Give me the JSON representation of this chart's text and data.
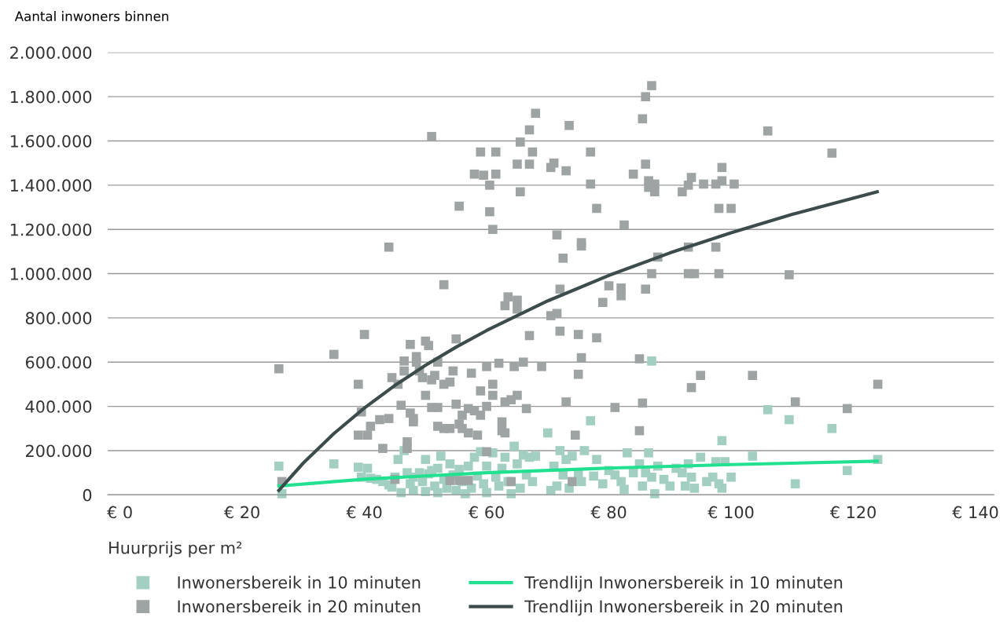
{
  "chart_data": {
    "type": "scatter",
    "ylabel": "Aantal inwoners binnen",
    "xlabel": "Huurprijs per m²",
    "xlim": [
      -2,
      143
    ],
    "xticks": [
      {
        "value": 0,
        "label": "€ 0"
      },
      {
        "value": 20,
        "label": "€ 20"
      },
      {
        "value": 40,
        "label": "€ 40"
      },
      {
        "value": 60,
        "label": "€ 60"
      },
      {
        "value": 80,
        "label": "€ 80"
      },
      {
        "value": 100,
        "label": "€ 100"
      },
      {
        "value": 120,
        "label": "€ 120"
      },
      {
        "value": 140,
        "label": "€ 140"
      }
    ],
    "ylim": [
      0,
      2000000
    ],
    "yticks": [
      0,
      {
        "value": 200000,
        "label": "200.000"
      },
      {
        "value": 400000,
        "label": "400.000"
      },
      {
        "value": 600000,
        "label": "600.000"
      },
      {
        "value": 800000,
        "label": "800.000"
      },
      {
        "value": 1000000,
        "label": "1.000.000"
      },
      {
        "value": 1200000,
        "label": "1.200.000"
      },
      {
        "value": 1400000,
        "label": "1.400.000"
      },
      {
        "value": 1600000,
        "label": "1.600.000"
      },
      {
        "value": 1800000,
        "label": "1.800.000"
      },
      {
        "value": 2000000,
        "label": "2.000.000"
      }
    ],
    "grid": "y",
    "legend": "bottom",
    "marker": "square",
    "series": [
      {
        "name": "Inwonersbereik in 10 minuten",
        "color": "#a3cfc3",
        "x": [
          26,
          26.5,
          35,
          39,
          39.5,
          40.5,
          41,
          42,
          43,
          44,
          44.5,
          45,
          45.5,
          46,
          46.5,
          47,
          47.5,
          48,
          48,
          49,
          49.5,
          50,
          50,
          50.5,
          51,
          51.5,
          52,
          52,
          52.5,
          53,
          53.5,
          54,
          54.5,
          55,
          55.5,
          56,
          56.5,
          57,
          57.5,
          58,
          58.5,
          59,
          59.5,
          60,
          60,
          61,
          61.5,
          62,
          62.5,
          63,
          63.5,
          64,
          64.5,
          65,
          65.5,
          66,
          66.5,
          67,
          67.5,
          68,
          70,
          70.5,
          71,
          71.5,
          72,
          72.5,
          73,
          73.5,
          74,
          75,
          75.5,
          76,
          77,
          77.5,
          78,
          79,
          80,
          81,
          82,
          82.5,
          83,
          84,
          85,
          85.5,
          86,
          86.5,
          87,
          87,
          87.5,
          88,
          89,
          90,
          91,
          92,
          92.5,
          93,
          93.5,
          94,
          95,
          96,
          97,
          97.5,
          98,
          98.5,
          98.5,
          99,
          100,
          103.5,
          106,
          109.5,
          110.5,
          116.5,
          119,
          124
        ],
        "values": [
          130000,
          5000,
          140000,
          125000,
          80000,
          120000,
          75000,
          70000,
          60000,
          45000,
          35000,
          80000,
          160000,
          10000,
          200000,
          100000,
          50000,
          80000,
          20000,
          100000,
          60000,
          160000,
          15000,
          95000,
          110000,
          40000,
          120000,
          10000,
          175000,
          70000,
          30000,
          140000,
          90000,
          20000,
          115000,
          60000,
          5000,
          130000,
          30000,
          170000,
          85000,
          195000,
          50000,
          10000,
          130000,
          190000,
          80000,
          40000,
          120000,
          170000,
          60000,
          5000,
          220000,
          140000,
          30000,
          180000,
          90000,
          170000,
          60000,
          175000,
          280000,
          20000,
          130000,
          40000,
          200000,
          90000,
          160000,
          30000,
          175000,
          100000,
          60000,
          200000,
          335000,
          85000,
          160000,
          50000,
          110000,
          90000,
          60000,
          25000,
          190000,
          100000,
          140000,
          40000,
          100000,
          190000,
          605000,
          80000,
          5000,
          130000,
          70000,
          40000,
          120000,
          100000,
          40000,
          140000,
          80000,
          30000,
          170000,
          60000,
          80000,
          150000,
          50000,
          245000,
          30000,
          150000,
          80000,
          175000,
          385000,
          340000,
          50000,
          300000,
          110000,
          160000
        ]
      },
      {
        "name": "Inwonersbereik in 20 minuten",
        "color": "#9ea3a4",
        "x": [
          26,
          26.5,
          35,
          39,
          40,
          39.5,
          39,
          40.5,
          41,
          44,
          42.5,
          43,
          44,
          44.5,
          45.5,
          46,
          46.5,
          46.5,
          47,
          47,
          47.5,
          47.5,
          48,
          48,
          48.5,
          48.5,
          49,
          49.5,
          50,
          50,
          50.5,
          51,
          51,
          51,
          51.5,
          52,
          52,
          52,
          53,
          53,
          53,
          54,
          54,
          54.5,
          55,
          55,
          55.5,
          55.5,
          56,
          56,
          57,
          57,
          57.5,
          58,
          58,
          58.5,
          59,
          59,
          59,
          59.5,
          60,
          60,
          60,
          60.5,
          60.5,
          61,
          61,
          61,
          61.5,
          61.5,
          62,
          62.5,
          62.5,
          63,
          63,
          63,
          63.5,
          64,
          64.5,
          65,
          65,
          65,
          65,
          65.5,
          65.5,
          66,
          66.5,
          67,
          67,
          67,
          67.5,
          68,
          69,
          70.5,
          70.5,
          71,
          71.5,
          71.5,
          72,
          72,
          72.5,
          73,
          73.5,
          73,
          74.5,
          75,
          75,
          75.5,
          75.5,
          75.5,
          77,
          77,
          78,
          78,
          79,
          80,
          81,
          82,
          82,
          82.5,
          84,
          85,
          85,
          85.5,
          85.5,
          86,
          86,
          86,
          86.5,
          86.5,
          87,
          87,
          87.5,
          87.5,
          88,
          92,
          93,
          93,
          93,
          93.5,
          94,
          93.5,
          95,
          95.5,
          97.5,
          97.5,
          98,
          98,
          98.5,
          98.5,
          100,
          100.5,
          103.5,
          106,
          109.5,
          110.5,
          116.5,
          119,
          124,
          45,
          54,
          55.5,
          57,
          64,
          74
        ],
        "values": [
          570000,
          60000,
          635000,
          500000,
          725000,
          375000,
          270000,
          270000,
          310000,
          1120000,
          340000,
          210000,
          345000,
          530000,
          500000,
          405000,
          560000,
          605000,
          240000,
          210000,
          680000,
          370000,
          330000,
          345000,
          600000,
          625000,
          560000,
          530000,
          695000,
          450000,
          675000,
          1620000,
          520000,
          395000,
          540000,
          600000,
          310000,
          395000,
          950000,
          300000,
          500000,
          300000,
          510000,
          560000,
          705000,
          410000,
          1305000,
          320000,
          300000,
          360000,
          390000,
          280000,
          550000,
          1450000,
          380000,
          270000,
          1550000,
          470000,
          360000,
          1445000,
          580000,
          400000,
          195000,
          1400000,
          1280000,
          1200000,
          500000,
          450000,
          1550000,
          1450000,
          595000,
          330000,
          290000,
          855000,
          420000,
          280000,
          895000,
          430000,
          580000,
          1495000,
          880000,
          840000,
          450000,
          1595000,
          1370000,
          600000,
          390000,
          1650000,
          1495000,
          720000,
          1550000,
          1725000,
          580000,
          1480000,
          810000,
          1500000,
          820000,
          1175000,
          930000,
          740000,
          1070000,
          1465000,
          1670000,
          420000,
          270000,
          545000,
          725000,
          1125000,
          1140000,
          620000,
          1550000,
          1405000,
          1295000,
          710000,
          870000,
          945000,
          395000,
          935000,
          900000,
          1220000,
          1450000,
          615000,
          290000,
          1700000,
          415000,
          1800000,
          1495000,
          930000,
          1420000,
          1390000,
          1850000,
          1000000,
          1405000,
          1370000,
          1075000,
          1370000,
          1400000,
          1120000,
          1000000,
          1435000,
          1000000,
          485000,
          540000,
          1405000,
          1405000,
          1120000,
          1295000,
          1000000,
          1480000,
          1420000,
          1295000,
          1405000,
          540000,
          1645000,
          995000,
          420000,
          1545000,
          390000,
          500000,
          70000,
          65000,
          65000,
          65000,
          60000,
          60000
        ]
      },
      {
        "name": "Trendlijn Inwonersbereik in 10 minuten",
        "type": "line",
        "color": "#21e090",
        "marker": "none",
        "x": [
          26,
          40,
          60,
          80,
          100,
          123.9
        ],
        "values": [
          40000,
          71000,
          100000,
          121000,
          137000,
          152000
        ]
      },
      {
        "name": "Trendlijn Inwonersbereik in 20 minuten",
        "type": "line",
        "color": "#3c4b4b",
        "marker": "none",
        "x": [
          26,
          30,
          35,
          40,
          45,
          50,
          55,
          60,
          70,
          80,
          90,
          100,
          110,
          123.9
        ],
        "values": [
          20000,
          144000,
          277000,
          393000,
          495000,
          586000,
          668000,
          743000,
          877000,
          992000,
          1094000,
          1185000,
          1268000,
          1370000
        ]
      }
    ]
  }
}
